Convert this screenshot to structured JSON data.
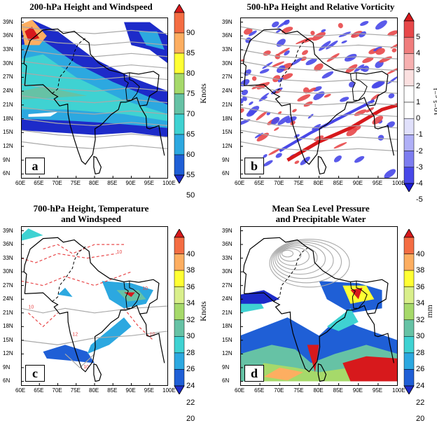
{
  "panels": [
    {
      "id": "a",
      "title": "200-hPa Height and Windspeed",
      "label": "a",
      "unit": "Knots",
      "colorbar_ticks": [
        "90",
        "85",
        "80",
        "75",
        "70",
        "65",
        "60",
        "55",
        "50"
      ],
      "colorbar_colors": [
        "#d7191c",
        "#f46d43",
        "#fdae61",
        "#ffff33",
        "#a6d96a",
        "#66c2a5",
        "#3fd2d2",
        "#2ca8e0",
        "#1f5fd6",
        "#1d2bc9"
      ]
    },
    {
      "id": "b",
      "title": "500-hPa Height and Relative Vorticity",
      "label": "b",
      "unit": "10⁻⁵ s⁻¹",
      "colorbar_ticks": [
        "5",
        "4",
        "3",
        "2",
        "1",
        "0",
        "-1",
        "-2",
        "-3",
        "-4",
        "-5"
      ],
      "colorbar_colors": [
        "#d7191c",
        "#e8484a",
        "#f07d7d",
        "#f7b0b0",
        "#fbe0e0",
        "#ffffff",
        "#ffffff",
        "#e0e0fb",
        "#b0b0f7",
        "#7d7df0",
        "#4848e8",
        "#1c1cd7"
      ]
    },
    {
      "id": "c",
      "title": "700-hPa Height, Temperature\nand Windspeed",
      "label": "c",
      "unit": "Knots",
      "colorbar_ticks": [
        "40",
        "38",
        "36",
        "34",
        "32",
        "30",
        "28",
        "26",
        "24",
        "22",
        "20"
      ],
      "colorbar_colors": [
        "#d7191c",
        "#f46d43",
        "#fdae61",
        "#ffff33",
        "#d9ef8b",
        "#a6d96a",
        "#66c2a5",
        "#3fd2d2",
        "#2ca8e0",
        "#1f5fd6",
        "#1d2bc9"
      ]
    },
    {
      "id": "d",
      "title": "Mean Sea Level Pressure\nand Precipitable Water",
      "label": "d",
      "unit": "mm",
      "colorbar_ticks": [
        "40",
        "38",
        "36",
        "34",
        "32",
        "30",
        "28",
        "26",
        "24",
        "22",
        "20"
      ],
      "colorbar_colors": [
        "#d7191c",
        "#f46d43",
        "#fdae61",
        "#ffff33",
        "#d9ef8b",
        "#a6d96a",
        "#66c2a5",
        "#3fd2d2",
        "#2ca8e0",
        "#1f5fd6",
        "#1d2bc9"
      ]
    }
  ],
  "lat_ticks": [
    "39N",
    "36N",
    "33N",
    "30N",
    "27N",
    "24N",
    "21N",
    "18N",
    "15N",
    "12N",
    "9N",
    "6N"
  ],
  "lon_ticks": [
    "60E",
    "65E",
    "70E",
    "75E",
    "80E",
    "85E",
    "90E",
    "95E",
    "100E"
  ],
  "contour_labels_c": [
    "10",
    "12",
    "10",
    "10",
    "10",
    "10"
  ]
}
